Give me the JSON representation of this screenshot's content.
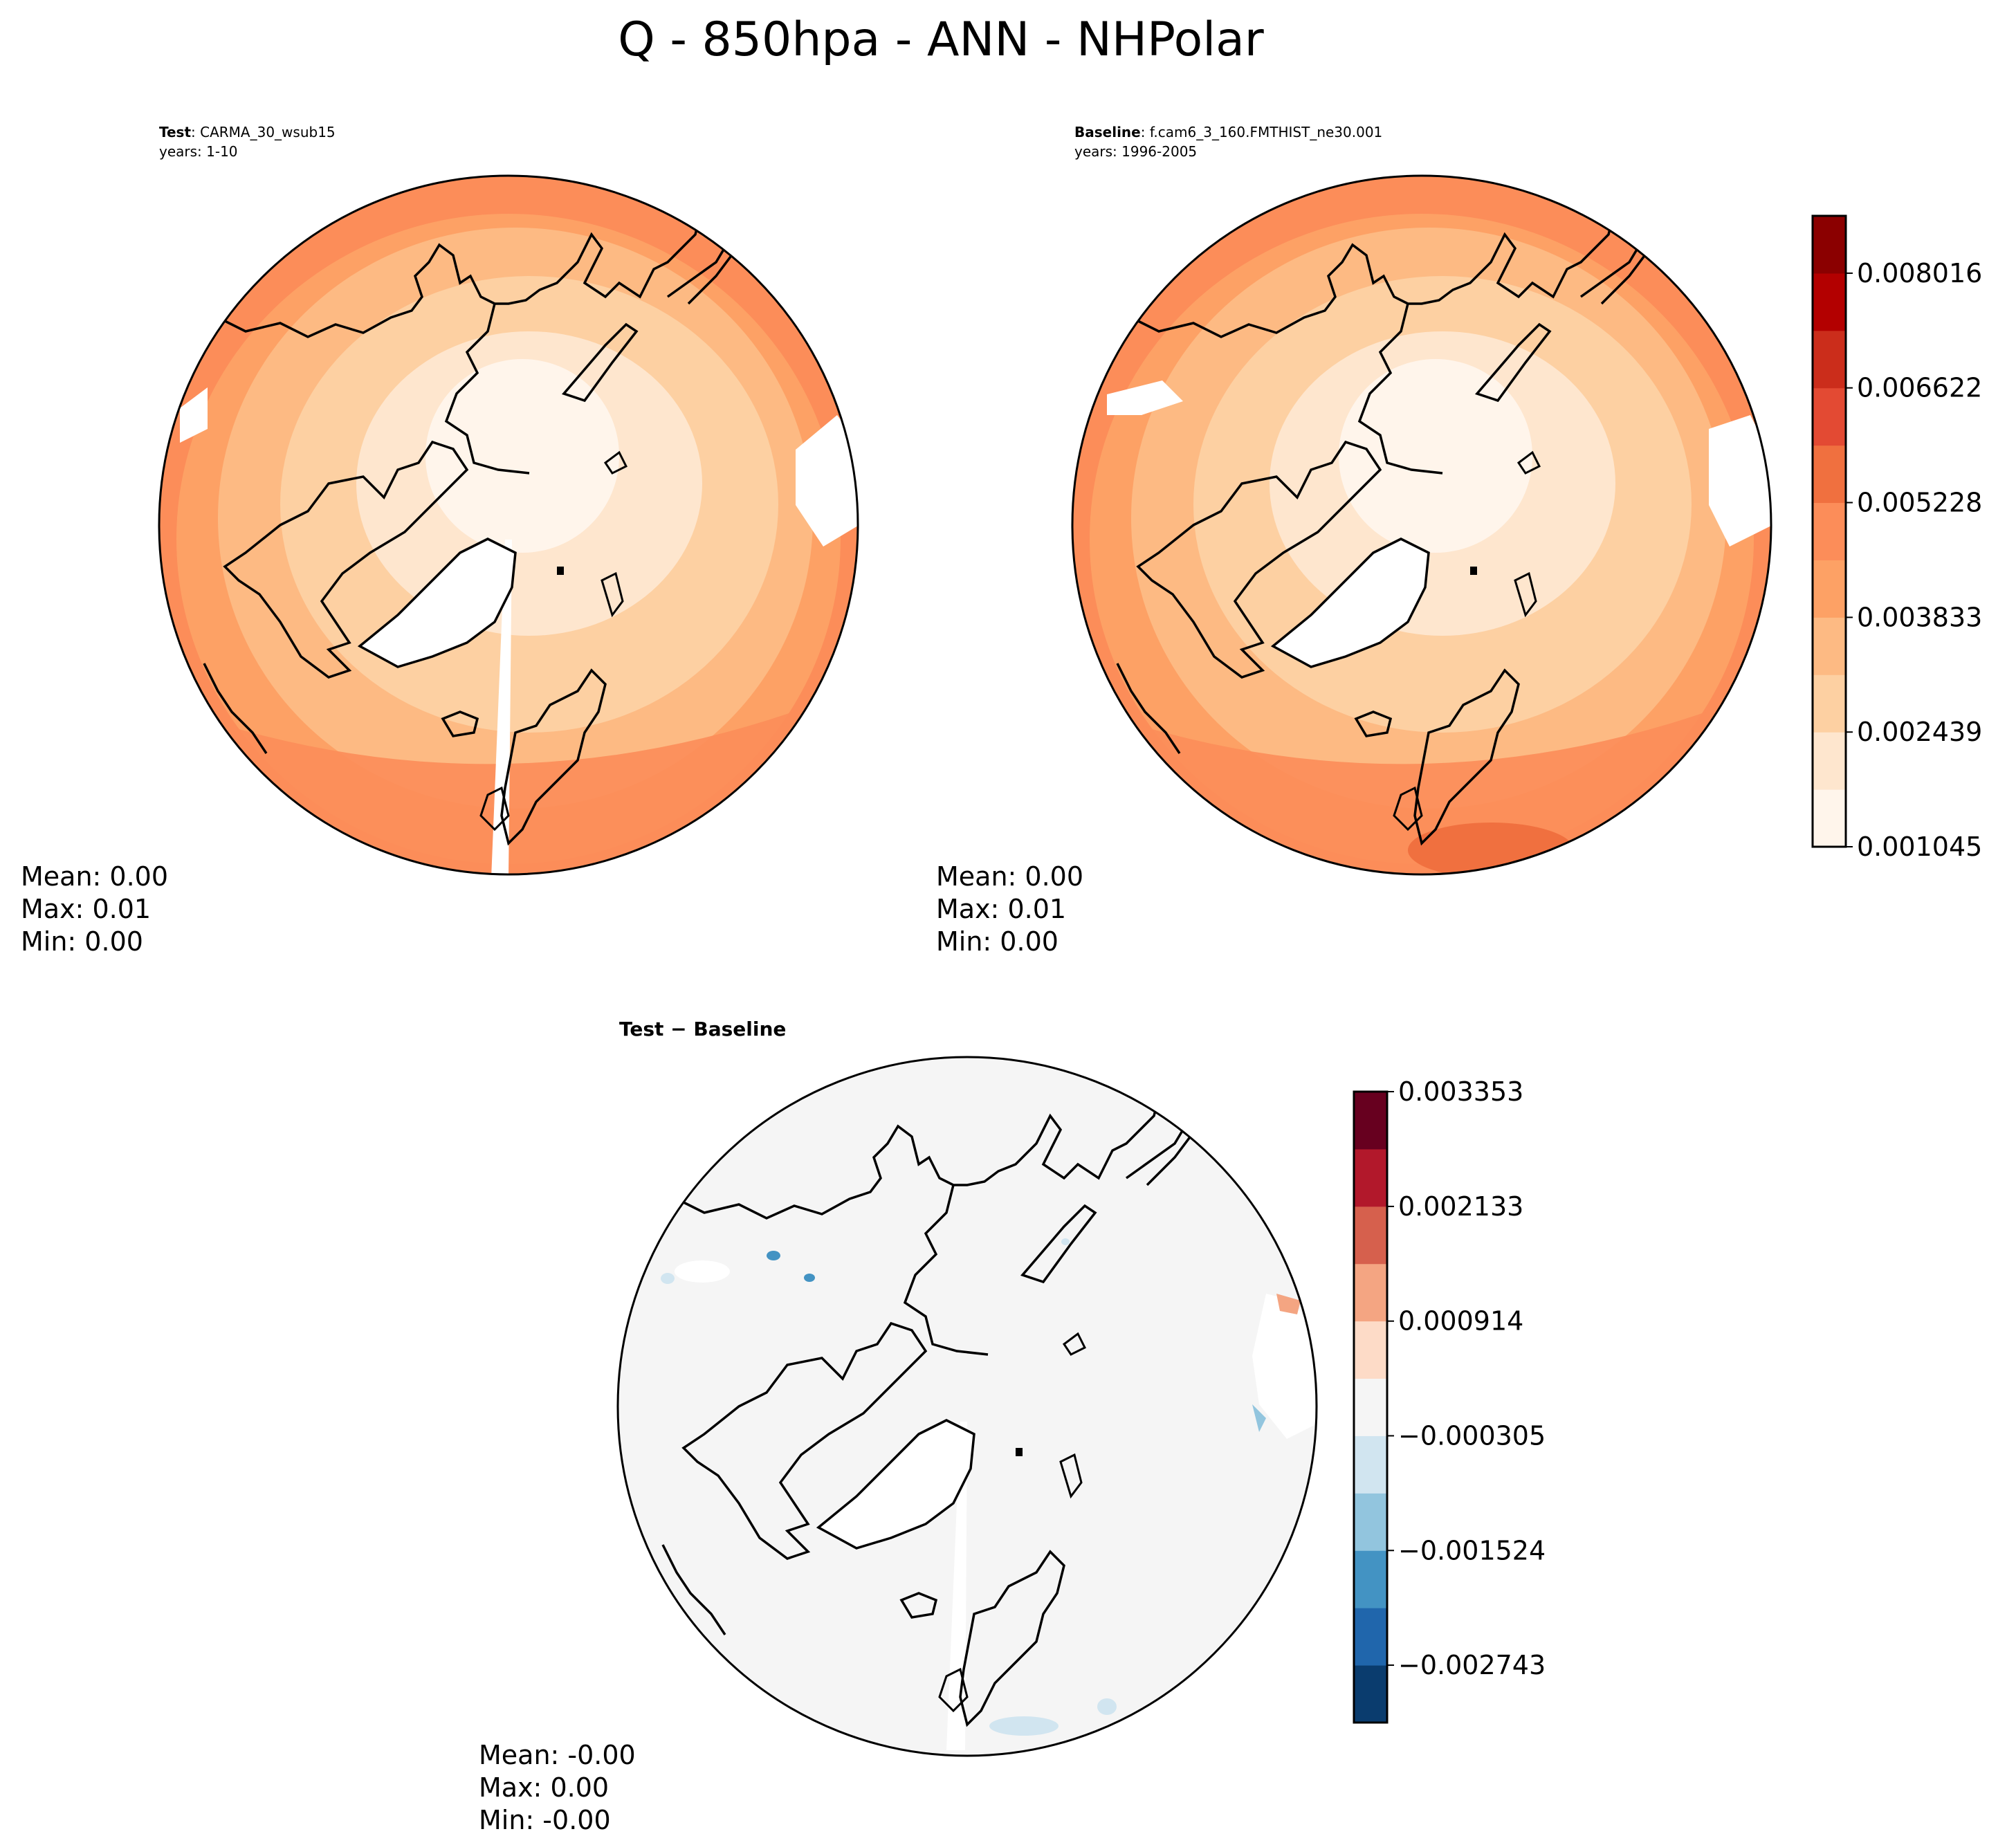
{
  "title": "Q - 850hpa - ANN - NHPolar",
  "colors": {
    "abs": [
      "#fff5eb",
      "#fee6ce",
      "#fdd0a2",
      "#fdba83",
      "#fda165",
      "#fc8d59",
      "#f0703f",
      "#e34a33",
      "#cb2d1b",
      "#b30000",
      "#8b0000"
    ],
    "diff": [
      "#0a3c6e",
      "#2066ac",
      "#4393c3",
      "#92c5de",
      "#d1e5f0",
      "#f5f5f5",
      "#fddbc7",
      "#f4a582",
      "#d6604d",
      "#b2182b",
      "#67001f"
    ],
    "frame": "#000000",
    "coast": "#000000",
    "ice": "#ffffff"
  },
  "panels": {
    "test": {
      "label_bold": "Test",
      "label_text": ": CARMA_30_wsub15",
      "years": "years: 1-10",
      "stats": [
        "Mean:  0.00",
        "Max:  0.01",
        "Min:  0.00"
      ]
    },
    "baseline": {
      "label_bold": "Baseline",
      "label_text": ": f.cam6_3_160.FMTHIST_ne30.001",
      "years": "years: 1996-2005",
      "stats": [
        "Mean:  0.00",
        "Max:  0.01",
        "Min:  0.00"
      ]
    },
    "diff": {
      "label": "Test − Baseline",
      "stats": [
        "Mean: -0.00",
        "Max:  0.00",
        "Min: -0.00"
      ]
    }
  },
  "chart_data": [
    {
      "type": "heatmap",
      "projection": "north-polar-stereographic",
      "panel": "test",
      "variable": "Q",
      "level": "850hpa",
      "season": "ANN",
      "colorbar_levels": [
        0.001045,
        0.001742,
        0.002439,
        0.003136,
        0.003833,
        0.00453,
        0.005228,
        0.005925,
        0.006622,
        0.007319,
        0.008016,
        0.008713
      ],
      "mean": 0.0,
      "max": 0.01,
      "min": 0.0
    },
    {
      "type": "heatmap",
      "projection": "north-polar-stereographic",
      "panel": "baseline",
      "colorbar_ticks": [
        "0.008016",
        "0.006622",
        "0.005228",
        "0.003833",
        "0.002439",
        "0.001045"
      ],
      "colorbar_levels": [
        0.001045,
        0.001742,
        0.002439,
        0.003136,
        0.003833,
        0.00453,
        0.005228,
        0.005925,
        0.006622,
        0.007319,
        0.008016,
        0.008713
      ],
      "mean": 0.0,
      "max": 0.01,
      "min": 0.0
    },
    {
      "type": "heatmap",
      "projection": "north-polar-stereographic",
      "panel": "diff",
      "colorbar_ticks": [
        "0.003353",
        "0.002133",
        "0.000914",
        "−0.000305",
        "−0.001524",
        "−0.002743"
      ],
      "colorbar_levels": [
        -0.003353,
        -0.002743,
        -0.002133,
        -0.001524,
        -0.000914,
        -0.000305,
        0.000305,
        0.000914,
        0.001524,
        0.002133,
        0.002743,
        0.003353
      ],
      "mean": -0.0,
      "max": 0.0,
      "min": -0.0
    }
  ]
}
